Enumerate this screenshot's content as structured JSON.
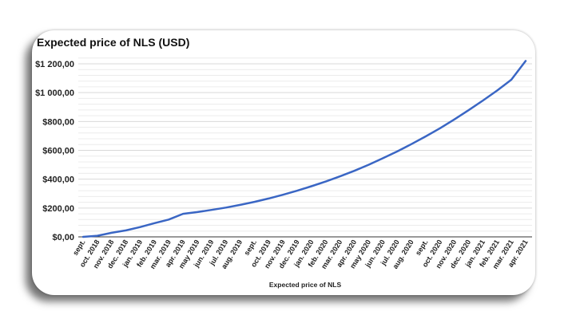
{
  "chart_data": {
    "type": "line",
    "title": "Expected price of NLS  (USD)",
    "xlabel": "Expected price of NLS",
    "ylabel": "",
    "ylim": [
      0,
      1200
    ],
    "yticks": [
      0,
      200,
      400,
      600,
      800,
      1000,
      1200
    ],
    "ytick_labels": [
      "$0,00",
      "$200,00",
      "$400,00",
      "$600,00",
      "$800,00",
      "$1 000,00",
      "$1 200,00"
    ],
    "grid": true,
    "categories": [
      "sept.",
      "oct. 2018",
      "nov. 2018",
      "dec. 2018",
      "jan. 2019",
      "feb. 2019",
      "mar. 2019",
      "apr. 2019",
      "may 2019",
      "jun. 2019",
      "jul. 2019",
      "aug. 2019",
      "sept.",
      "oct. 2019",
      "nov. 2019",
      "dec. 2019",
      "jan. 2020",
      "feb. 2020",
      "mar. 2020",
      "apr. 2020",
      "may 2020",
      "jun. 2020",
      "jul. 2020",
      "aug. 2020",
      "sept.",
      "oct. 2020",
      "nov. 2020",
      "dec. 2020",
      "jan. 2021",
      "feb. 2021",
      "mar. 2021",
      "apr. 2021"
    ],
    "series": [
      {
        "color": "#3a66c4",
        "values": [
          0,
          8,
          28,
          45,
          68,
          95,
          120,
          160,
          172,
          187,
          203,
          222,
          243,
          266,
          292,
          320,
          351,
          384,
          420,
          458,
          500,
          545,
          592,
          643,
          697,
          753,
          814,
          878,
          945,
          1015,
          1090,
          1220
        ]
      }
    ]
  }
}
